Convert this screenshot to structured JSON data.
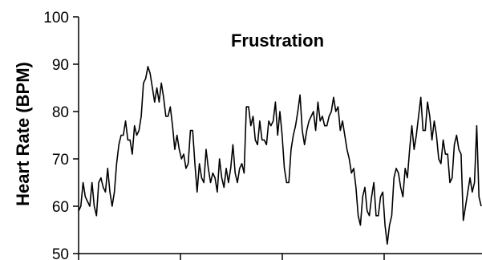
{
  "chart_data": {
    "type": "line",
    "title": "Frustration",
    "xlabel": "",
    "ylabel": "Heart Rate (BPM)",
    "ylim": [
      50,
      100
    ],
    "yticks": [
      50,
      60,
      70,
      80,
      90,
      100
    ],
    "x_tick_count": 5,
    "grid": false,
    "legend": "none",
    "series": [
      {
        "color": "#000000",
        "values": [
          59,
          60,
          65,
          62,
          61,
          60,
          65,
          60,
          58,
          65,
          66,
          64,
          63,
          68,
          63,
          60,
          63,
          69,
          73,
          75,
          75,
          78,
          74,
          74,
          71,
          77,
          75,
          76,
          79,
          86,
          87,
          89.5,
          88,
          85,
          82,
          85,
          82,
          86,
          83,
          79,
          79,
          81,
          77,
          72,
          75,
          72,
          70,
          71,
          68,
          69,
          76,
          76,
          69,
          63,
          69,
          66,
          65,
          72,
          68,
          65,
          67,
          66,
          63,
          70,
          66,
          64,
          68,
          65,
          68,
          73,
          67,
          65,
          68,
          69,
          67,
          81,
          81,
          77,
          79,
          74,
          73,
          78,
          74,
          74,
          73,
          78,
          77,
          78,
          82,
          75,
          80,
          75,
          68,
          65,
          65,
          72,
          75,
          77,
          80,
          83.5,
          76,
          73,
          76,
          78,
          79,
          80,
          76,
          82,
          78,
          79,
          77,
          77,
          79,
          80,
          83,
          80,
          81,
          76,
          78,
          75,
          72,
          70,
          67,
          68,
          64,
          58,
          56,
          62,
          64,
          59,
          58,
          62,
          65,
          58,
          58,
          62,
          63,
          56,
          52,
          56,
          58,
          66,
          68,
          67,
          64,
          62,
          68,
          66,
          72,
          77,
          72,
          75,
          79,
          83,
          76,
          76,
          82,
          79,
          74,
          78,
          75,
          70,
          69,
          74,
          71,
          71,
          65,
          66,
          73,
          75,
          72,
          71,
          57,
          60,
          63,
          66,
          63,
          65,
          77,
          62,
          60
        ]
      }
    ]
  }
}
